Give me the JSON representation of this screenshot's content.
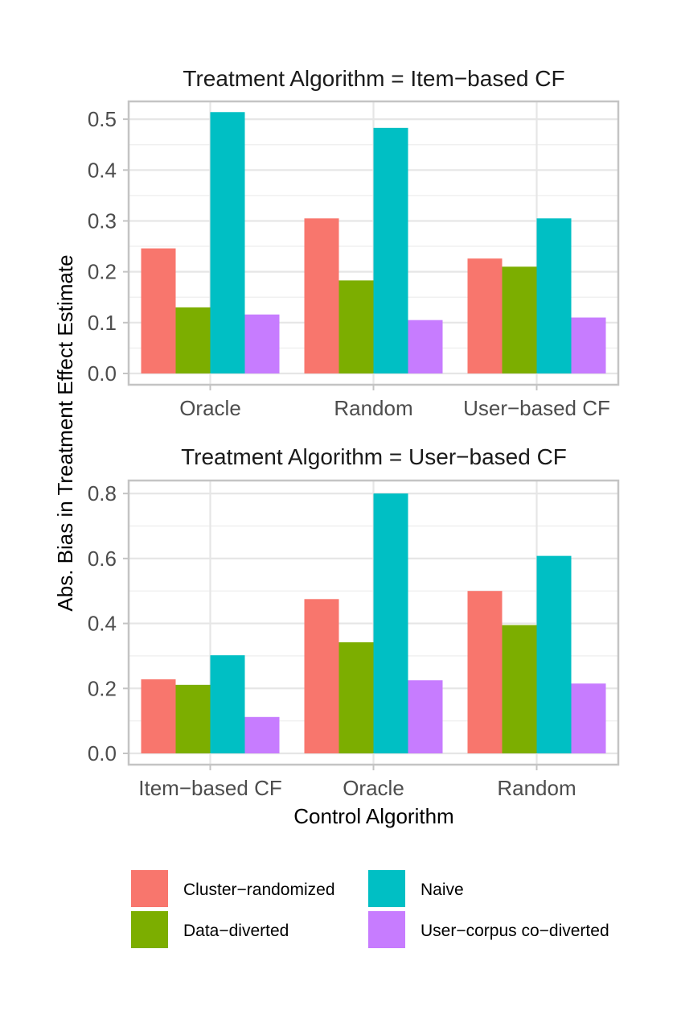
{
  "chart_data": {
    "type": "bar",
    "ylabel": "Abs. Bias in Treatment Effect Estimate",
    "xlabel": "Control Algorithm",
    "legend": {
      "placement": "bottom",
      "entries": [
        "Cluster−randomized",
        "Naive",
        "Data−diverted",
        "User−corpus co−diverted"
      ]
    },
    "series_colors": {
      "Cluster−randomized": "#F8766D",
      "Data−diverted": "#7CAE00",
      "Naive": "#00BFC4",
      "User−corpus co−diverted": "#C77CFF"
    },
    "series_order": [
      "Cluster−randomized",
      "Data−diverted",
      "Naive",
      "User−corpus co−diverted"
    ],
    "panels": [
      {
        "title": "Treatment Algorithm = Item−based CF",
        "categories": [
          "Oracle",
          "Random",
          "User−based CF"
        ],
        "ylim": [
          0,
          0.535
        ],
        "yticks": [
          0.0,
          0.1,
          0.2,
          0.3,
          0.4,
          0.5
        ],
        "ytick_labels": [
          "0.0",
          "0.1",
          "0.2",
          "0.3",
          "0.4",
          "0.5"
        ],
        "series": [
          {
            "name": "Cluster−randomized",
            "values": [
              0.246,
              0.305,
              0.226
            ]
          },
          {
            "name": "Data−diverted",
            "values": [
              0.13,
              0.183,
              0.21
            ]
          },
          {
            "name": "Naive",
            "values": [
              0.514,
              0.483,
              0.305
            ]
          },
          {
            "name": "User−corpus co−diverted",
            "values": [
              0.116,
              0.105,
              0.11
            ]
          }
        ]
      },
      {
        "title": "Treatment Algorithm = User−based CF",
        "categories": [
          "Item−based CF",
          "Oracle",
          "Random"
        ],
        "ylim": [
          0,
          0.84
        ],
        "yticks": [
          0.0,
          0.2,
          0.4,
          0.6,
          0.8
        ],
        "ytick_labels": [
          "0.0",
          "0.2",
          "0.4",
          "0.6",
          "0.8"
        ],
        "series": [
          {
            "name": "Cluster−randomized",
            "values": [
              0.228,
              0.475,
              0.5
            ]
          },
          {
            "name": "Data−diverted",
            "values": [
              0.211,
              0.342,
              0.395
            ]
          },
          {
            "name": "Naive",
            "values": [
              0.302,
              0.8,
              0.608
            ]
          },
          {
            "name": "User−corpus co−diverted",
            "values": [
              0.112,
              0.225,
              0.215
            ]
          }
        ]
      }
    ]
  }
}
